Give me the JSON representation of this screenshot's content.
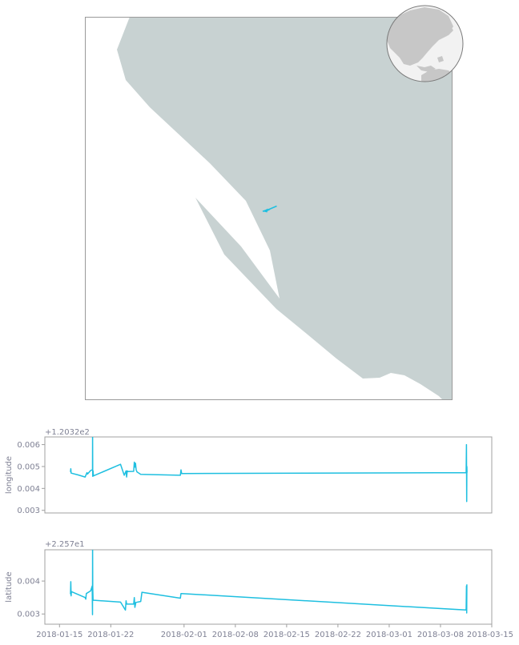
{
  "colors": {
    "land": "#c8d2d2",
    "track": "#1ebfe0",
    "frame": "#9a9a9a",
    "globe_land": "#c7c7c7",
    "globe_ocean": "#f2f2f2",
    "text": "#7f8194"
  },
  "map": {
    "track_points": [
      [
        345.5,
        257.5
      ],
      [
        335,
        262
      ],
      [
        328,
        264
      ],
      [
        333,
        263.5
      ],
      [
        337,
        261.5
      ]
    ]
  },
  "chart_data": [
    {
      "type": "line",
      "ylabel": "longitude",
      "offset_label": "+1.2032e2",
      "xlim": [
        "2018-01-13",
        "2018-03-15"
      ],
      "ylim": [
        0.00288,
        0.00635
      ],
      "yticks": [
        0.003,
        0.004,
        0.005,
        0.006
      ],
      "ytick_labels": [
        "0.003",
        "0.004",
        "0.005",
        "0.006"
      ],
      "series": [
        {
          "x": [
            "2018-01-16T12:00",
            "2018-01-16T13:00",
            "2018-01-16T14:00",
            "2018-01-17T12:00",
            "2018-01-18T12:00",
            "2018-01-18T18:00",
            "2018-01-18T20:00",
            "2018-01-19T06:00",
            "2018-01-19T12:00",
            "2018-01-19T12:30",
            "2018-01-19T13:00",
            "2018-01-19T14:00",
            "2018-01-19T15:00",
            "2018-01-23T08:00",
            "2018-01-23T20:00",
            "2018-01-24T02:00",
            "2018-01-24T04:00",
            "2018-01-24T06:00",
            "2018-01-24T08:00",
            "2018-01-25T03:00",
            "2018-01-25T05:00",
            "2018-01-25T07:00",
            "2018-01-25T09:00",
            "2018-01-25T11:00",
            "2018-01-25T14:00",
            "2018-01-26T02:00",
            "2018-01-31T12:00",
            "2018-01-31T14:00",
            "2018-01-31T16:00",
            "2018-03-11T12:00",
            "2018-03-11T13:00",
            "2018-03-11T14:00",
            "2018-03-11T14:30",
            "2018-03-11T15:00"
          ],
          "values": [
            0.00475,
            0.0049,
            0.0047,
            0.00462,
            0.00452,
            0.00472,
            0.00466,
            0.00482,
            0.00485,
            0.0065,
            0.00455,
            0.0048,
            0.00457,
            0.0051,
            0.0046,
            0.0048,
            0.00452,
            0.0048,
            0.00477,
            0.00478,
            0.0052,
            0.00497,
            0.00515,
            0.00485,
            0.00475,
            0.00464,
            0.0046,
            0.00485,
            0.00468,
            0.00472,
            0.006,
            0.0034,
            0.005,
            0.00472
          ]
        }
      ]
    },
    {
      "type": "line",
      "ylabel": "latitude",
      "offset_label": "+2.257e1",
      "xlim": [
        "2018-01-13",
        "2018-03-15"
      ],
      "xticks": [
        "2018-01-15",
        "2018-01-22",
        "2018-02-01",
        "2018-02-08",
        "2018-02-15",
        "2018-02-22",
        "2018-03-01",
        "2018-03-08",
        "2018-03-15"
      ],
      "xtick_labels": [
        "2018-01-15",
        "2018-01-22",
        "2018-02-01",
        "2018-02-08",
        "2018-02-15",
        "2018-02-22",
        "2018-03-01",
        "2018-03-08",
        "2018-03-15"
      ],
      "ylim": [
        0.00269,
        0.00495
      ],
      "yticks": [
        0.003,
        0.004
      ],
      "ytick_labels": [
        "0.003",
        "0.004"
      ],
      "series": [
        {
          "x": [
            "2018-01-16T12:00",
            "2018-01-16T13:00",
            "2018-01-16T14:00",
            "2018-01-16T15:00",
            "2018-01-18T12:00",
            "2018-01-18T14:00",
            "2018-01-18T16:00",
            "2018-01-19T06:00",
            "2018-01-19T11:00",
            "2018-01-19T12:00",
            "2018-01-19T12:30",
            "2018-01-19T13:00",
            "2018-01-19T14:00",
            "2018-01-23T08:00",
            "2018-01-24T00:00",
            "2018-01-24T02:00",
            "2018-01-24T04:00",
            "2018-01-24T08:00",
            "2018-01-25T03:00",
            "2018-01-25T05:00",
            "2018-01-25T07:00",
            "2018-01-25T10:00",
            "2018-01-26T02:00",
            "2018-01-26T06:00",
            "2018-01-31T12:00",
            "2018-01-31T14:00",
            "2018-01-31T16:00",
            "2018-03-11T12:00",
            "2018-03-11T13:00",
            "2018-03-11T14:00",
            "2018-03-11T14:30"
          ],
          "values": [
            0.0036,
            0.00398,
            0.00355,
            0.00368,
            0.0035,
            0.00345,
            0.00362,
            0.0037,
            0.00385,
            0.00298,
            0.0051,
            0.0038,
            0.00342,
            0.00336,
            0.00312,
            0.0034,
            0.0033,
            0.0033,
            0.0033,
            0.0035,
            0.0032,
            0.00335,
            0.00338,
            0.00366,
            0.00348,
            0.00362,
            0.00362,
            0.00312,
            0.00385,
            0.00303,
            0.0039
          ]
        }
      ]
    }
  ]
}
